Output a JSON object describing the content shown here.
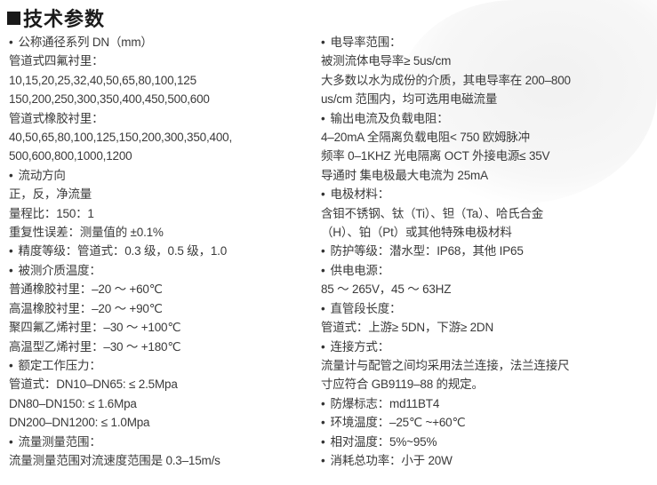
{
  "title": "技术参数",
  "left": [
    {
      "text": "公称通径系列 DN（mm）",
      "bullet": true
    },
    {
      "text": "管道式四氟衬里：",
      "bullet": false
    },
    {
      "text": "10,15,20,25,32,40,50,65,80,100,125",
      "bullet": false
    },
    {
      "text": "150,200,250,300,350,400,450,500,600",
      "bullet": false
    },
    {
      "text": "管道式橡胶衬里：",
      "bullet": false
    },
    {
      "text": "40,50,65,80,100,125,150,200,300,350,400,",
      "bullet": false
    },
    {
      "text": "500,600,800,1000,1200",
      "bullet": false
    },
    {
      "text": "流动方向",
      "bullet": true
    },
    {
      "text": "正，反，净流量",
      "bullet": false
    },
    {
      "text": "量程比：150：1",
      "bullet": false
    },
    {
      "text": "重复性误差：测量值的 ±0.1%",
      "bullet": false
    },
    {
      "text": "精度等级：管道式：0.3 级，0.5 级，1.0",
      "bullet": true
    },
    {
      "text": "被测介质温度：",
      "bullet": true
    },
    {
      "text": "普通橡胶衬里：–20 ～ +60℃",
      "bullet": false
    },
    {
      "text": "高温橡胶衬里：–20 ～ +90℃",
      "bullet": false
    },
    {
      "text": "聚四氟乙烯衬里：–30 ～ +100℃",
      "bullet": false
    },
    {
      "text": "高温型乙烯衬里：–30 ～ +180℃",
      "bullet": false
    },
    {
      "text": "额定工作压力：",
      "bullet": true
    },
    {
      "text": "管道式：DN10–DN65: ≤ 2.5Mpa",
      "bullet": false
    },
    {
      "text": "DN80–DN150: ≤ 1.6Mpa",
      "bullet": false
    },
    {
      "text": "DN200–DN1200: ≤ 1.0Mpa",
      "bullet": false
    },
    {
      "text": "流量测量范围：",
      "bullet": true
    },
    {
      "text": "流量测量范围对流速度范围是 0.3–15m/s",
      "bullet": false
    }
  ],
  "right": [
    {
      "text": "电导率范围：",
      "bullet": true
    },
    {
      "text": "被测流体电导率≥ 5us/cm",
      "bullet": false
    },
    {
      "text": "大多数以水为成份的介质，其电导率在 200–800",
      "bullet": false
    },
    {
      "text": "us/cm 范围内，均可选用电磁流量",
      "bullet": false
    },
    {
      "text": "输出电流及负载电阻：",
      "bullet": true
    },
    {
      "text": "4–20mA 全隔离负载电阻< 750 欧姆脉冲",
      "bullet": false
    },
    {
      "text": "频率 0–1KHZ 光电隔离 OCT 外接电源≤ 35V",
      "bullet": false
    },
    {
      "text": "导通时  集电极最大电流为 25mA",
      "bullet": false
    },
    {
      "text": "电极材料：",
      "bullet": true
    },
    {
      "text": "含钼不锈钢、钛（Ti）、钽（Ta）、哈氏合金",
      "bullet": false
    },
    {
      "text": "（H）、铂（Pt）或其他特殊电极材料",
      "bullet": false
    },
    {
      "text": "防护等级：潜水型：IP68，其他 IP65",
      "bullet": true
    },
    {
      "text": "供电电源：",
      "bullet": true
    },
    {
      "text": "85 ～ 265V，45 ～ 63HZ",
      "bullet": false
    },
    {
      "text": "直管段长度：",
      "bullet": true
    },
    {
      "text": "管道式：上游≥ 5DN，下游≥ 2DN",
      "bullet": false
    },
    {
      "text": "连接方式：",
      "bullet": true
    },
    {
      "text": "流量计与配管之间均采用法兰连接，法兰连接尺",
      "bullet": false
    },
    {
      "text": "寸应符合 GB9119–88 的规定。",
      "bullet": false
    },
    {
      "text": "防爆标志：md11BT4",
      "bullet": true
    },
    {
      "text": "环境温度：–25℃ ~+60℃",
      "bullet": true
    },
    {
      "text": "相对温度：5%~95%",
      "bullet": true
    },
    {
      "text": "消耗总功率：小于 20W",
      "bullet": true
    }
  ]
}
